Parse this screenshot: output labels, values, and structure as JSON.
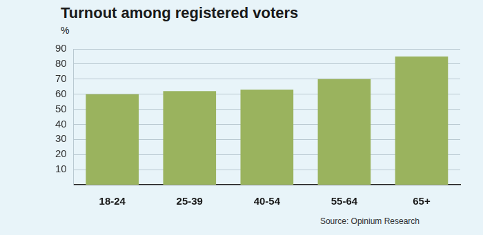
{
  "chart_data": {
    "type": "bar",
    "title": "Turnout among registered voters",
    "ylabel": "%",
    "source": "Source: Opinium Research",
    "categories": [
      "18-24",
      "25-39",
      "40-54",
      "55-64",
      "65+"
    ],
    "values": [
      60,
      62,
      63,
      70,
      85
    ],
    "color": "#9ab35e",
    "ylim": [
      0,
      90
    ],
    "yticks": [
      10,
      20,
      30,
      40,
      50,
      60,
      70,
      80,
      90
    ],
    "grid": true
  }
}
